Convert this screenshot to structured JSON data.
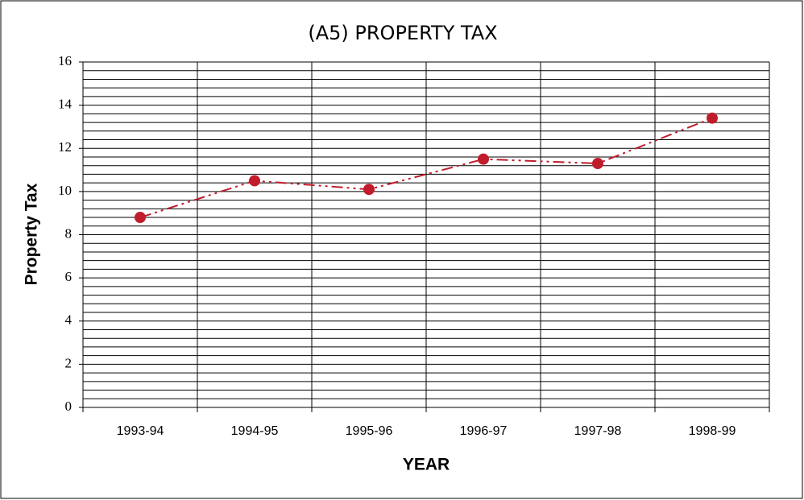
{
  "chart_data": {
    "type": "line",
    "title": "(A5) PROPERTY TAX",
    "x_label": "YEAR",
    "y_label": "Property Tax",
    "categories": [
      "1993-94",
      "1994-95",
      "1995-96",
      "1996-97",
      "1997-98",
      "1998-99"
    ],
    "series": [
      {
        "name": "Property Tax",
        "color": "#c01c2c",
        "values": [
          8.8,
          10.5,
          10.1,
          11.5,
          11.3,
          13.4
        ]
      }
    ],
    "ylim": [
      0,
      16
    ],
    "yticks": [
      0,
      2,
      4,
      6,
      8,
      10,
      12,
      14,
      16
    ],
    "minor_grid": 0.4,
    "grid": true
  }
}
